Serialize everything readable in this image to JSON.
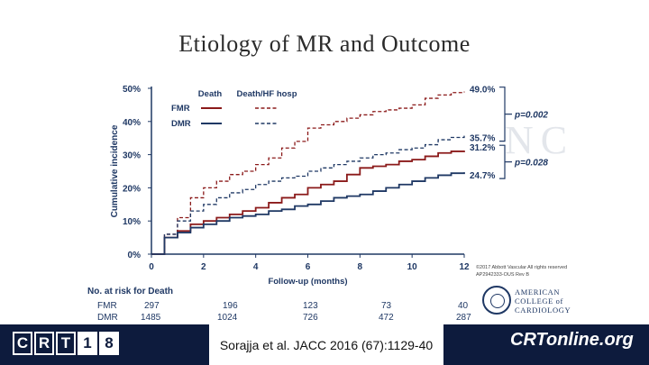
{
  "title": "Etiology of MR and Outcome",
  "citation": "Sorajja et al. JACC 2016 (67):1129-40",
  "brand_logo": "CRT18",
  "brand_left_chars": [
    "C",
    "R",
    "T",
    "1",
    "8"
  ],
  "brand_right": "CRTonline.org",
  "acc_text": [
    "AMERICAN",
    "COLLEGE of",
    "CARDIOLOGY"
  ],
  "copyright": [
    "©2017 Abbott Vascular All rights reserved",
    "AP2942333-OUS Rev B"
  ],
  "watermark": "NC",
  "colors": {
    "fmr": "#8b1a1a",
    "dmr": "#1f3864",
    "axis": "#1f3864",
    "bar": "#0d1b3d"
  },
  "chart_data": {
    "type": "line",
    "title": "Etiology of MR and Outcome",
    "xlabel": "Follow-up (months)",
    "ylabel": "Cumulative incidence",
    "xlim": [
      0,
      12
    ],
    "ylim": [
      0,
      50
    ],
    "xticks": [
      0,
      2,
      4,
      6,
      8,
      10,
      12
    ],
    "yticks": [
      0,
      10,
      20,
      30,
      40,
      50
    ],
    "ytick_labels": [
      "0%",
      "10%",
      "20%",
      "30%",
      "40%",
      "50%"
    ],
    "legend": {
      "header_death": "Death",
      "header_death_hf": "Death/HF hosp",
      "rows": [
        "FMR",
        "DMR"
      ]
    },
    "series": [
      {
        "name": "FMR Death/HF hosp",
        "group": "FMR",
        "style": "dashed",
        "x": [
          0,
          0.5,
          1,
          1.5,
          2,
          2.5,
          3,
          3.5,
          4,
          4.5,
          5,
          5.5,
          6,
          6.5,
          7,
          7.5,
          8,
          8.5,
          9,
          9.5,
          10,
          10.5,
          11,
          11.5,
          12
        ],
        "y": [
          0,
          6,
          11,
          17,
          20,
          22,
          24,
          25,
          27,
          29,
          32,
          34,
          38,
          39,
          40,
          41,
          42,
          43,
          43.5,
          44,
          45,
          47,
          48,
          48.7,
          49
        ]
      },
      {
        "name": "DMR Death/HF hosp",
        "group": "DMR",
        "style": "dashed",
        "x": [
          0,
          0.5,
          1,
          1.5,
          2,
          2.5,
          3,
          3.5,
          4,
          4.5,
          5,
          5.5,
          6,
          6.5,
          7,
          7.5,
          8,
          8.5,
          9,
          9.5,
          10,
          10.5,
          11,
          11.5,
          12
        ],
        "y": [
          0,
          6,
          10,
          13,
          15,
          17,
          18.5,
          19.5,
          21,
          22,
          23,
          23.5,
          25,
          26,
          27,
          28,
          29,
          30,
          30.5,
          31.5,
          32,
          33,
          34.5,
          35.2,
          35.7
        ]
      },
      {
        "name": "FMR Death",
        "group": "FMR",
        "style": "solid",
        "x": [
          0,
          0.5,
          1,
          1.5,
          2,
          2.5,
          3,
          3.5,
          4,
          4.5,
          5,
          5.5,
          6,
          6.5,
          7,
          7.5,
          8,
          8.5,
          9,
          9.5,
          10,
          10.5,
          11,
          11.5,
          12
        ],
        "y": [
          0,
          5,
          7,
          9,
          10,
          11,
          12,
          13,
          14,
          15.5,
          17,
          18,
          20,
          21,
          22,
          24,
          26,
          26.5,
          27,
          28,
          28.5,
          29.5,
          30.5,
          31,
          31.2
        ]
      },
      {
        "name": "DMR Death",
        "group": "DMR",
        "style": "solid",
        "x": [
          0,
          0.5,
          1,
          1.5,
          2,
          2.5,
          3,
          3.5,
          4,
          4.5,
          5,
          5.5,
          6,
          6.5,
          7,
          7.5,
          8,
          8.5,
          9,
          9.5,
          10,
          10.5,
          11,
          11.5,
          12
        ],
        "y": [
          0,
          5,
          6.5,
          8,
          9,
          10,
          11,
          11.5,
          12,
          13,
          13.5,
          14.5,
          15,
          16,
          17,
          17.5,
          18,
          19,
          20,
          21,
          22,
          23,
          23.8,
          24.4,
          24.7
        ]
      }
    ],
    "end_labels": [
      "49.0%",
      "35.7%",
      "31.2%",
      "24.7%"
    ],
    "pvalues": [
      "p=0.002",
      "p=0.028"
    ],
    "risk_table": {
      "title": "No. at risk for Death",
      "rows": [
        {
          "label": "FMR",
          "values": [
            "297",
            "196",
            "123",
            "73",
            "40"
          ]
        },
        {
          "label": "DMR",
          "values": [
            "1485",
            "1024",
            "726",
            "472",
            "287"
          ]
        }
      ]
    }
  }
}
